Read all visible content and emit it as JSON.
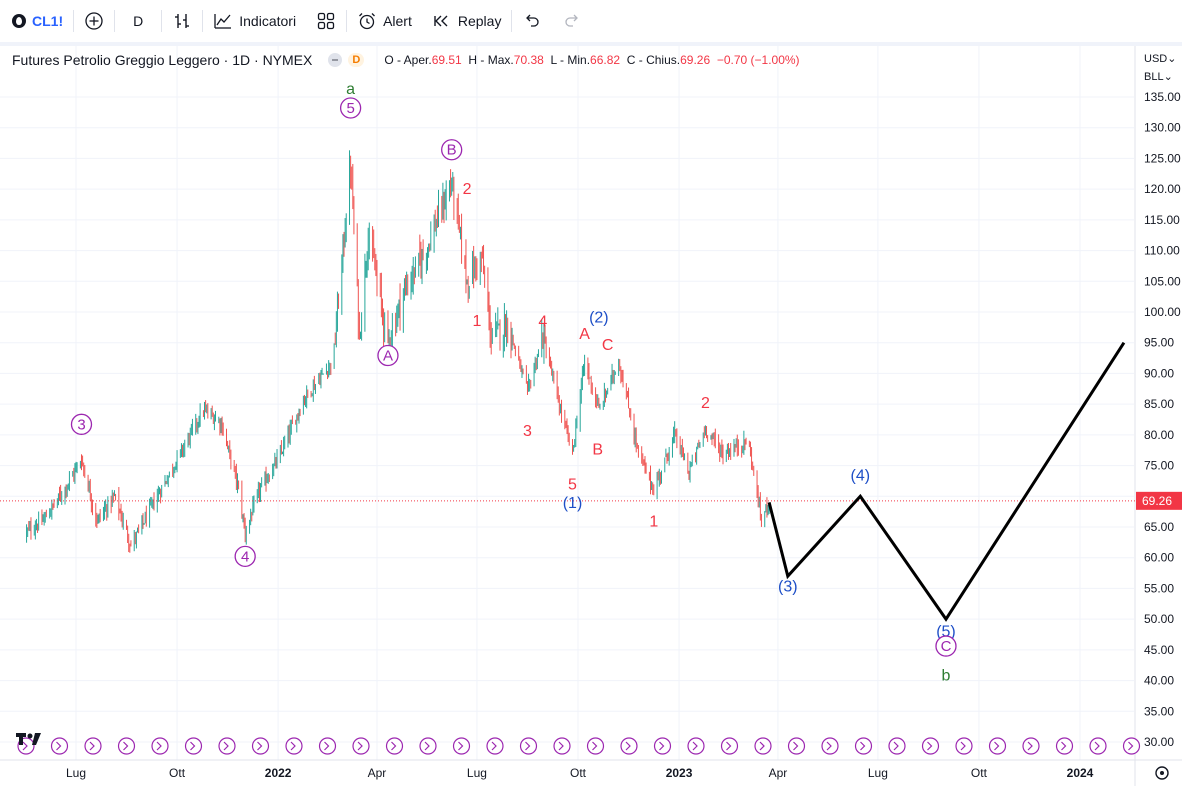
{
  "toolbar": {
    "symbol": "CL1!",
    "interval": "D",
    "indicators_label": "Indicatori",
    "alert_label": "Alert",
    "replay_label": "Replay"
  },
  "legend": {
    "title": "Futures Petrolio Greggio Leggero · 1D · NYMEX",
    "badge": "D",
    "o_label": "O",
    "o_name": "Aper.",
    "o_value": "69.51",
    "h_label": "H",
    "h_name": "Max.",
    "h_value": "70.38",
    "l_label": "L",
    "l_name": "Min.",
    "l_value": "66.82",
    "c_label": "C",
    "c_name": "Chius.",
    "c_value": "69.26",
    "change": "−0.70 (−1.00%)"
  },
  "price_scale": {
    "currency": "USD",
    "unit": "BLL",
    "current_price": "69.26"
  },
  "colors": {
    "up": "#26a69a",
    "down": "#ef5350",
    "wave_purple": "#9c27b0",
    "wave_red": "#f23645",
    "wave_blue": "#1e4fc7",
    "wave_green": "#2e7d32",
    "projection": "#000000",
    "price_line": "#f23645"
  },
  "chart_data": {
    "type": "candlestick",
    "instrument": "CL1!",
    "y_ticks": [
      135,
      130,
      125,
      120,
      115,
      110,
      105,
      100,
      95,
      90,
      85,
      80,
      75,
      70,
      65,
      60,
      55,
      50,
      45,
      40,
      35,
      30
    ],
    "ylim": [
      30,
      138
    ],
    "x_tick_labels": [
      "Lug",
      "Ott",
      "2022",
      "Apr",
      "Lug",
      "Ott",
      "2023",
      "Apr",
      "Lug",
      "Ott",
      "2024"
    ],
    "x_tick_dates": [
      "2021-07-01",
      "2021-10-01",
      "2022-01-01",
      "2022-04-01",
      "2022-07-01",
      "2022-10-01",
      "2023-01-01",
      "2023-04-01",
      "2023-07-01",
      "2023-10-01",
      "2024-01-01"
    ],
    "last_close": 69.26,
    "price_path": [
      {
        "date": "2021-05-15",
        "price": 64
      },
      {
        "date": "2021-06-01",
        "price": 66
      },
      {
        "date": "2021-06-20",
        "price": 71
      },
      {
        "date": "2021-07-06",
        "price": 76
      },
      {
        "date": "2021-07-20",
        "price": 66
      },
      {
        "date": "2021-08-05",
        "price": 70
      },
      {
        "date": "2021-08-20",
        "price": 62
      },
      {
        "date": "2021-09-10",
        "price": 69
      },
      {
        "date": "2021-10-01",
        "price": 76
      },
      {
        "date": "2021-10-25",
        "price": 84
      },
      {
        "date": "2021-11-10",
        "price": 82
      },
      {
        "date": "2021-11-25",
        "price": 72
      },
      {
        "date": "2021-12-02",
        "price": 64
      },
      {
        "date": "2021-12-15",
        "price": 71
      },
      {
        "date": "2022-01-01",
        "price": 76
      },
      {
        "date": "2022-01-25",
        "price": 86
      },
      {
        "date": "2022-02-20",
        "price": 92
      },
      {
        "date": "2022-03-08",
        "price": 124
      },
      {
        "date": "2022-03-16",
        "price": 96
      },
      {
        "date": "2022-03-24",
        "price": 113
      },
      {
        "date": "2022-04-11",
        "price": 95
      },
      {
        "date": "2022-04-25",
        "price": 103
      },
      {
        "date": "2022-05-15",
        "price": 110
      },
      {
        "date": "2022-06-08",
        "price": 121
      },
      {
        "date": "2022-06-22",
        "price": 105
      },
      {
        "date": "2022-07-05",
        "price": 109
      },
      {
        "date": "2022-07-14",
        "price": 96
      },
      {
        "date": "2022-07-29",
        "price": 98
      },
      {
        "date": "2022-08-16",
        "price": 87
      },
      {
        "date": "2022-08-30",
        "price": 96
      },
      {
        "date": "2022-09-15",
        "price": 84
      },
      {
        "date": "2022-09-26",
        "price": 77
      },
      {
        "date": "2022-10-07",
        "price": 92
      },
      {
        "date": "2022-10-20",
        "price": 84
      },
      {
        "date": "2022-11-07",
        "price": 92
      },
      {
        "date": "2022-11-25",
        "price": 77
      },
      {
        "date": "2022-12-09",
        "price": 71
      },
      {
        "date": "2022-12-28",
        "price": 80
      },
      {
        "date": "2023-01-10",
        "price": 74
      },
      {
        "date": "2023-01-25",
        "price": 81
      },
      {
        "date": "2023-02-10",
        "price": 77
      },
      {
        "date": "2023-03-05",
        "price": 79
      },
      {
        "date": "2023-03-17",
        "price": 66
      },
      {
        "date": "2023-03-24",
        "price": 69.3
      }
    ],
    "projection": [
      {
        "date": "2023-03-24",
        "price": 69
      },
      {
        "date": "2023-04-10",
        "price": 57
      },
      {
        "date": "2023-06-15",
        "price": 70
      },
      {
        "date": "2023-09-01",
        "price": 50
      },
      {
        "date": "2024-02-10",
        "price": 95
      }
    ],
    "wave_labels": [
      {
        "text": "a",
        "date": "2022-03-08",
        "price": 135.5,
        "style": "green"
      },
      {
        "text": "5",
        "date": "2022-03-08",
        "price": 132.4,
        "style": "purple-circle"
      },
      {
        "text": "3",
        "date": "2021-07-06",
        "price": 80.9,
        "style": "purple-circle"
      },
      {
        "text": "4",
        "date": "2021-12-02",
        "price": 59.4,
        "style": "purple-circle"
      },
      {
        "text": "A",
        "date": "2022-04-11",
        "price": 92.1,
        "style": "purple-circle"
      },
      {
        "text": "B",
        "date": "2022-06-08",
        "price": 125.6,
        "style": "purple-circle"
      },
      {
        "text": "2",
        "date": "2022-06-22",
        "price": 119.2,
        "style": "red"
      },
      {
        "text": "1",
        "date": "2022-07-01",
        "price": 97.7,
        "style": "red"
      },
      {
        "text": "4",
        "date": "2022-08-30",
        "price": 97.6,
        "style": "red"
      },
      {
        "text": "3",
        "date": "2022-08-16",
        "price": 79.8,
        "style": "red"
      },
      {
        "text": "5",
        "date": "2022-09-26",
        "price": 71.1,
        "style": "red"
      },
      {
        "text": "(1)",
        "date": "2022-09-26",
        "price": 68.1,
        "style": "blue"
      },
      {
        "text": "A",
        "date": "2022-10-07",
        "price": 95.6,
        "style": "red"
      },
      {
        "text": "(2)",
        "date": "2022-10-20",
        "price": 98.3,
        "style": "blue"
      },
      {
        "text": "C",
        "date": "2022-10-28",
        "price": 93.8,
        "style": "red"
      },
      {
        "text": "B",
        "date": "2022-10-19",
        "price": 76.8,
        "style": "red"
      },
      {
        "text": "2",
        "date": "2023-01-25",
        "price": 84.4,
        "style": "red"
      },
      {
        "text": "1",
        "date": "2022-12-09",
        "price": 65.1,
        "style": "red"
      },
      {
        "text": "(3)",
        "date": "2023-04-10",
        "price": 54.5,
        "style": "blue"
      },
      {
        "text": "(4)",
        "date": "2023-06-15",
        "price": 72.6,
        "style": "blue"
      },
      {
        "text": "(5)",
        "date": "2023-09-01",
        "price": 47.2,
        "style": "blue"
      },
      {
        "text": "C",
        "date": "2023-09-01",
        "price": 44.8,
        "style": "purple-circle"
      },
      {
        "text": "b",
        "date": "2023-09-01",
        "price": 40.0,
        "style": "green"
      }
    ]
  }
}
